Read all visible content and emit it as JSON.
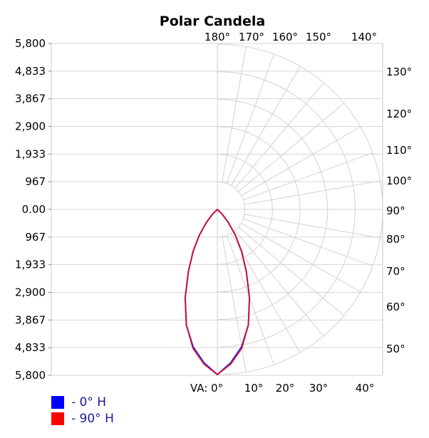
{
  "chart_data": {
    "type": "polar-candela",
    "title": "Polar Candela",
    "radial_max": 5800,
    "y_tick_labels": [
      "5,800",
      "4,833",
      "3,867",
      "2,900",
      "1,933",
      "967",
      "0.00",
      "967",
      "1,933",
      "2,900",
      "3,867",
      "4,833",
      "5,800"
    ],
    "angle_labels_bottom": [
      "VA: 0°",
      "10°",
      "20°",
      "30°",
      "40°"
    ],
    "angle_labels_top": [
      "180°",
      "170°",
      "160°",
      "150°",
      "140°"
    ],
    "angle_labels_right": [
      "50°",
      "60°",
      "70°",
      "80°",
      "90°",
      "100°",
      "110°",
      "120°",
      "130°"
    ],
    "grid": true,
    "legend_position": "bottom-left",
    "series": [
      {
        "name": "- 0° H",
        "color": "#0000ff",
        "points": [
          {
            "va": 0,
            "cd": 5800
          },
          {
            "va": 5,
            "cd": 5400
          },
          {
            "va": 10,
            "cd": 4900
          },
          {
            "va": 15,
            "cd": 4200
          },
          {
            "va": 20,
            "cd": 3300
          },
          {
            "va": 25,
            "cd": 2400
          },
          {
            "va": 30,
            "cd": 1700
          },
          {
            "va": 35,
            "cd": 1100
          },
          {
            "va": 40,
            "cd": 600
          },
          {
            "va": 45,
            "cd": 250
          },
          {
            "va": 50,
            "cd": 0
          }
        ]
      },
      {
        "name": "- 90° H",
        "color": "#ff0000",
        "points": [
          {
            "va": 0,
            "cd": 5800
          },
          {
            "va": 5,
            "cd": 5450
          },
          {
            "va": 10,
            "cd": 4950
          },
          {
            "va": 15,
            "cd": 4200
          },
          {
            "va": 20,
            "cd": 3300
          },
          {
            "va": 25,
            "cd": 2400
          },
          {
            "va": 30,
            "cd": 1700
          },
          {
            "va": 35,
            "cd": 1100
          },
          {
            "va": 40,
            "cd": 600
          },
          {
            "va": 45,
            "cd": 250
          },
          {
            "va": 50,
            "cd": 0
          }
        ]
      }
    ]
  }
}
